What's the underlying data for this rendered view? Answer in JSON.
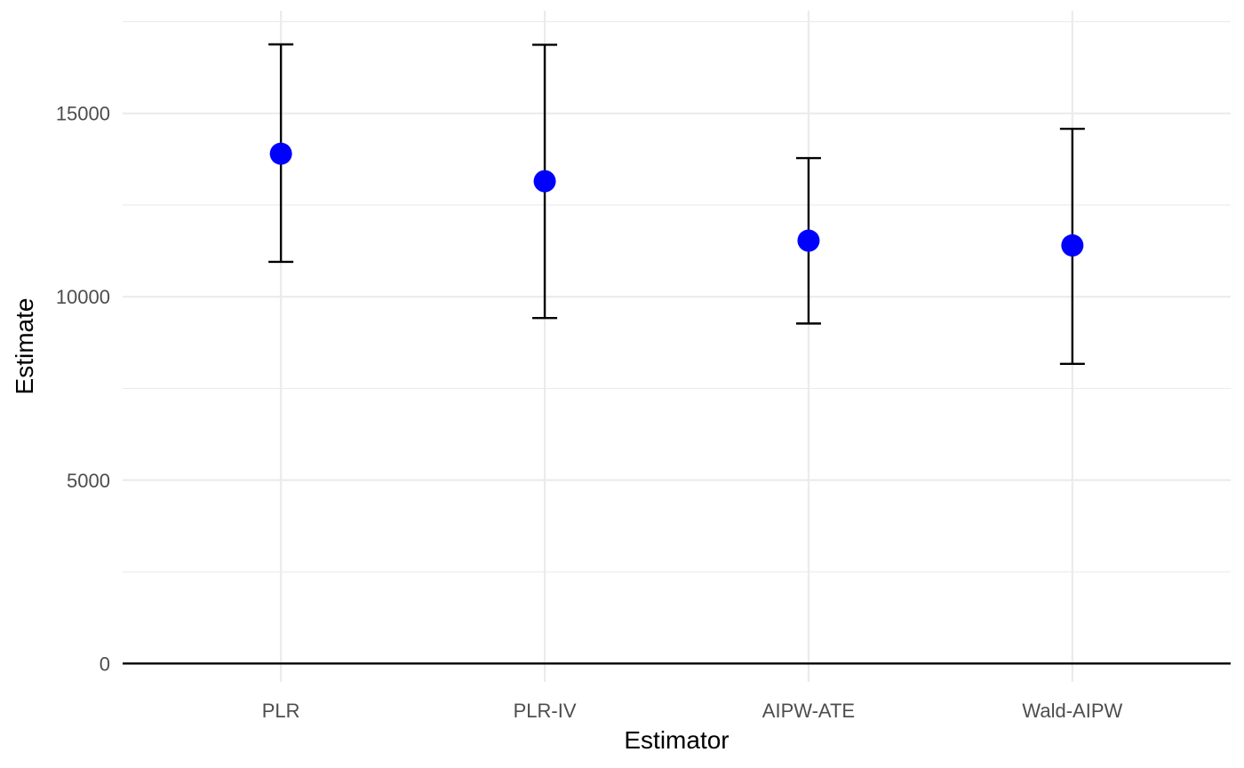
{
  "chart_data": {
    "type": "scatter",
    "title": "",
    "xlabel": "Estimator",
    "ylabel": "Estimate",
    "categories": [
      "PLR",
      "PLR-IV",
      "AIPW-ATE",
      "Wald-AIPW"
    ],
    "values": [
      13900,
      13150,
      11530,
      11400
    ],
    "ci_lower": [
      10950,
      9420,
      9270,
      8170
    ],
    "ci_upper": [
      16880,
      16870,
      13780,
      14580
    ],
    "ylim": [
      -500,
      17800
    ],
    "yticks": [
      0,
      5000,
      10000,
      15000
    ],
    "ytick_labels": [
      "0",
      "5000",
      "10000",
      "15000"
    ],
    "hline": 0,
    "point_color": "#0000ff",
    "errorbar_color": "#000000",
    "grid": true,
    "legend": "none"
  }
}
